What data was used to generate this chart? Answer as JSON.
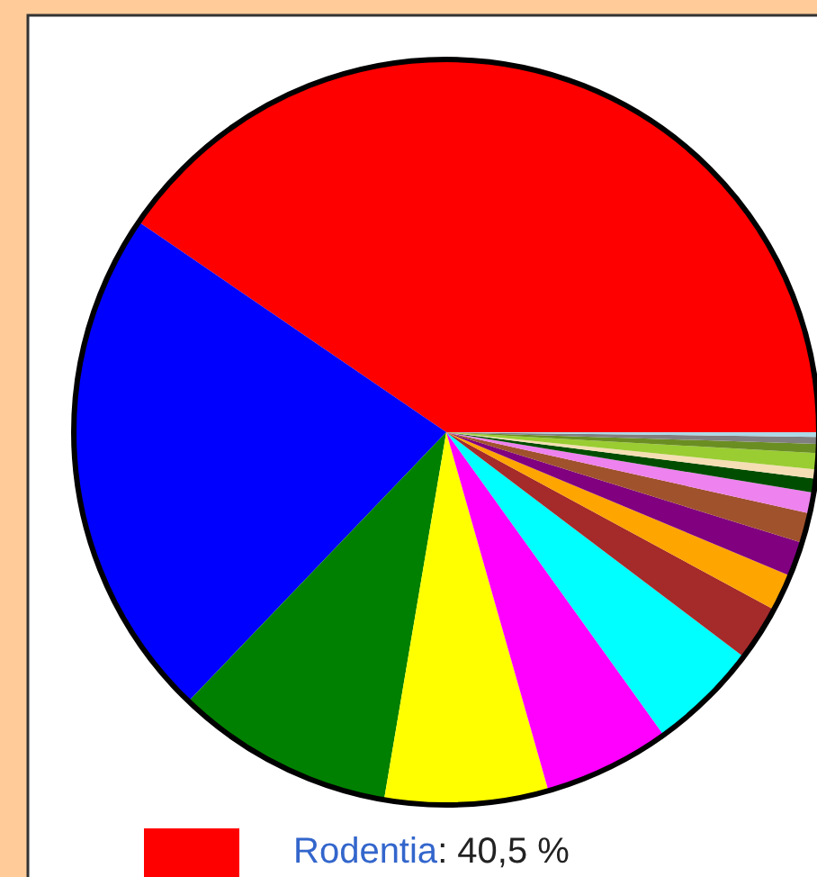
{
  "chart_data": {
    "type": "pie",
    "categories": [
      "Rodentia",
      null,
      null,
      null,
      null,
      null,
      null,
      null,
      null,
      null,
      null,
      null,
      null,
      null,
      null,
      null,
      null
    ],
    "values": [
      40.5,
      22.4,
      9.5,
      7.1,
      5.5,
      4.8,
      2.4,
      1.6,
      1.5,
      1.3,
      0.9,
      0.6,
      0.4,
      0.7,
      0.4,
      0.3,
      0.2
    ],
    "value_labels": [
      ": 40,5 %",
      null,
      null,
      null,
      null,
      null,
      null,
      null,
      null,
      null,
      null,
      null,
      null,
      null,
      null,
      null,
      null
    ],
    "colors": [
      "#ff0000",
      "#0000ff",
      "#008000",
      "#ffff00",
      "#ff00ff",
      "#00ffff",
      "#a52a2a",
      "#ffa500",
      "#800080",
      "#a0522d",
      "#ee82ee",
      "#004d00",
      "#f5deb3",
      "#9acd32",
      "#6b8e23",
      "#808080",
      "#add8e6"
    ],
    "legend": "bottom"
  }
}
